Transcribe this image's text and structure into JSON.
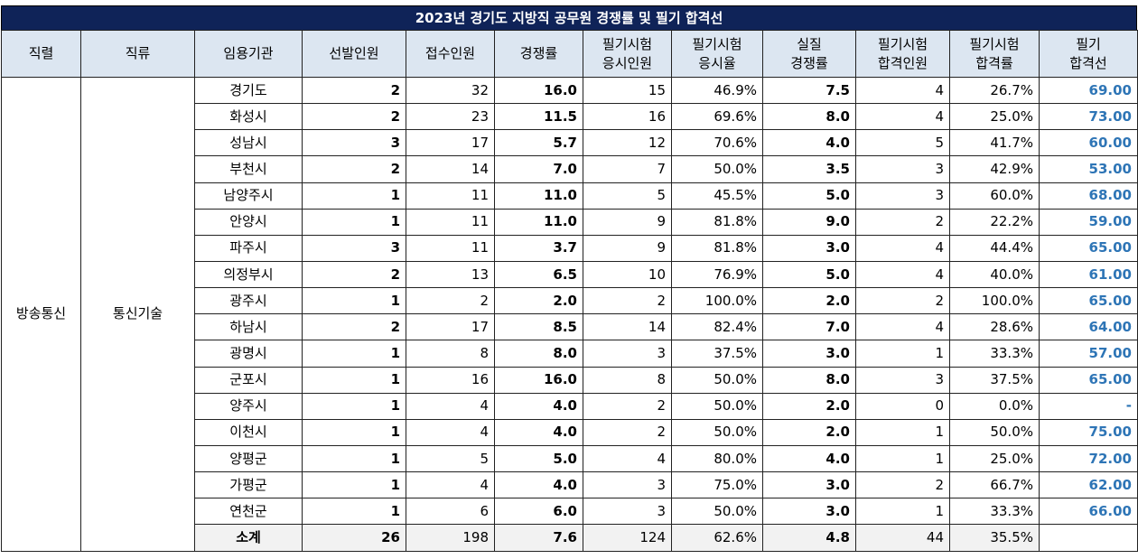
{
  "title": "2023년 경기도 지방직 공무원 경쟁률 및 필기 합격선",
  "headers": {
    "jikryeol": "직렬",
    "jikryu": "직류",
    "agency": "임용기관",
    "hires": "선발인원",
    "applicants": "접수인원",
    "ratio": "경쟁률",
    "exam_takers_1": "필기시험",
    "exam_takers_2": "응시인원",
    "exam_rate_1": "필기시험",
    "exam_rate_2": "응시율",
    "real_ratio_1": "실질",
    "real_ratio_2": "경쟁률",
    "passers_1": "필기시험",
    "passers_2": "합격인원",
    "pass_rate_1": "필기시험",
    "pass_rate_2": "합격률",
    "cutoff_1": "필기",
    "cutoff_2": "합격선"
  },
  "group": {
    "jikryeol": "방송통신",
    "jikryu": "통신기술"
  },
  "rows": [
    {
      "agency": "경기도",
      "hires": "2",
      "applicants": "32",
      "ratio": "16.0",
      "takers": "15",
      "take_rate": "46.9%",
      "real": "7.5",
      "passers": "4",
      "pass_rate": "26.7%",
      "cutoff": "69.00"
    },
    {
      "agency": "화성시",
      "hires": "2",
      "applicants": "23",
      "ratio": "11.5",
      "takers": "16",
      "take_rate": "69.6%",
      "real": "8.0",
      "passers": "4",
      "pass_rate": "25.0%",
      "cutoff": "73.00"
    },
    {
      "agency": "성남시",
      "hires": "3",
      "applicants": "17",
      "ratio": "5.7",
      "takers": "12",
      "take_rate": "70.6%",
      "real": "4.0",
      "passers": "5",
      "pass_rate": "41.7%",
      "cutoff": "60.00"
    },
    {
      "agency": "부천시",
      "hires": "2",
      "applicants": "14",
      "ratio": "7.0",
      "takers": "7",
      "take_rate": "50.0%",
      "real": "3.5",
      "passers": "3",
      "pass_rate": "42.9%",
      "cutoff": "53.00"
    },
    {
      "agency": "남양주시",
      "hires": "1",
      "applicants": "11",
      "ratio": "11.0",
      "takers": "5",
      "take_rate": "45.5%",
      "real": "5.0",
      "passers": "3",
      "pass_rate": "60.0%",
      "cutoff": "68.00"
    },
    {
      "agency": "안양시",
      "hires": "1",
      "applicants": "11",
      "ratio": "11.0",
      "takers": "9",
      "take_rate": "81.8%",
      "real": "9.0",
      "passers": "2",
      "pass_rate": "22.2%",
      "cutoff": "59.00"
    },
    {
      "agency": "파주시",
      "hires": "3",
      "applicants": "11",
      "ratio": "3.7",
      "takers": "9",
      "take_rate": "81.8%",
      "real": "3.0",
      "passers": "4",
      "pass_rate": "44.4%",
      "cutoff": "65.00"
    },
    {
      "agency": "의정부시",
      "hires": "2",
      "applicants": "13",
      "ratio": "6.5",
      "takers": "10",
      "take_rate": "76.9%",
      "real": "5.0",
      "passers": "4",
      "pass_rate": "40.0%",
      "cutoff": "61.00"
    },
    {
      "agency": "광주시",
      "hires": "1",
      "applicants": "2",
      "ratio": "2.0",
      "takers": "2",
      "take_rate": "100.0%",
      "real": "2.0",
      "passers": "2",
      "pass_rate": "100.0%",
      "cutoff": "65.00"
    },
    {
      "agency": "하남시",
      "hires": "2",
      "applicants": "17",
      "ratio": "8.5",
      "takers": "14",
      "take_rate": "82.4%",
      "real": "7.0",
      "passers": "4",
      "pass_rate": "28.6%",
      "cutoff": "64.00"
    },
    {
      "agency": "광명시",
      "hires": "1",
      "applicants": "8",
      "ratio": "8.0",
      "takers": "3",
      "take_rate": "37.5%",
      "real": "3.0",
      "passers": "1",
      "pass_rate": "33.3%",
      "cutoff": "57.00"
    },
    {
      "agency": "군포시",
      "hires": "1",
      "applicants": "16",
      "ratio": "16.0",
      "takers": "8",
      "take_rate": "50.0%",
      "real": "8.0",
      "passers": "3",
      "pass_rate": "37.5%",
      "cutoff": "65.00"
    },
    {
      "agency": "양주시",
      "hires": "1",
      "applicants": "4",
      "ratio": "4.0",
      "takers": "2",
      "take_rate": "50.0%",
      "real": "2.0",
      "passers": "0",
      "pass_rate": "0.0%",
      "cutoff": "-"
    },
    {
      "agency": "이천시",
      "hires": "1",
      "applicants": "4",
      "ratio": "4.0",
      "takers": "2",
      "take_rate": "50.0%",
      "real": "2.0",
      "passers": "1",
      "pass_rate": "50.0%",
      "cutoff": "75.00"
    },
    {
      "agency": "양평군",
      "hires": "1",
      "applicants": "5",
      "ratio": "5.0",
      "takers": "4",
      "take_rate": "80.0%",
      "real": "4.0",
      "passers": "1",
      "pass_rate": "25.0%",
      "cutoff": "72.00"
    },
    {
      "agency": "가평군",
      "hires": "1",
      "applicants": "4",
      "ratio": "4.0",
      "takers": "3",
      "take_rate": "75.0%",
      "real": "3.0",
      "passers": "2",
      "pass_rate": "66.7%",
      "cutoff": "62.00"
    },
    {
      "agency": "연천군",
      "hires": "1",
      "applicants": "6",
      "ratio": "6.0",
      "takers": "3",
      "take_rate": "50.0%",
      "real": "3.0",
      "passers": "1",
      "pass_rate": "33.3%",
      "cutoff": "66.00"
    }
  ],
  "subtotal": {
    "agency": "소계",
    "hires": "26",
    "applicants": "198",
    "ratio": "7.6",
    "takers": "124",
    "take_rate": "62.6%",
    "real": "4.8",
    "passers": "44",
    "pass_rate": "35.5%",
    "cutoff": ""
  }
}
